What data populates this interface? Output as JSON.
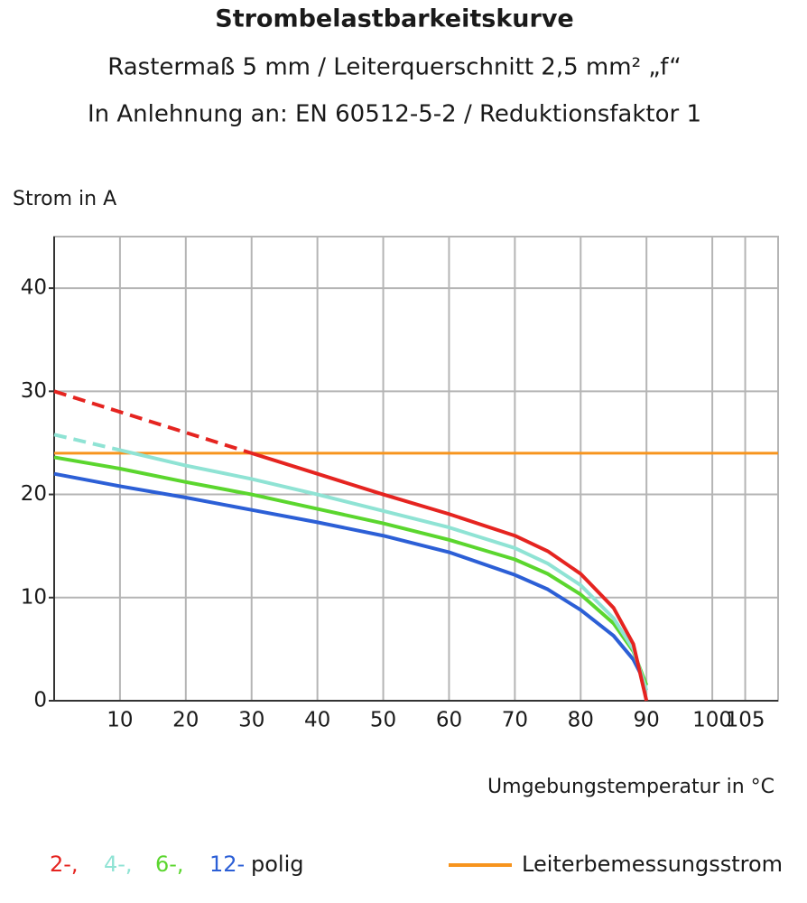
{
  "chart_data": {
    "type": "line",
    "title": "Strombelastbarkeitskurve",
    "subtitle": [
      "Rastermaß 5 mm / Leiterquerschnitt 2,5 mm² „f“",
      "In Anlehnung an: EN 60512-5-2 / Reduktionsfaktor 1"
    ],
    "y_label": "Strom in A",
    "x_label": "Umgebungstemperatur in °C",
    "x": [
      0,
      10,
      20,
      30,
      40,
      50,
      60,
      70,
      75,
      80,
      85,
      88,
      90
    ],
    "series": [
      {
        "name": "2-,",
        "color": "#e52420",
        "values": [
          null,
          null,
          null,
          24,
          22,
          20,
          18.1,
          16,
          14.5,
          12.3,
          9,
          5.5,
          0
        ],
        "dashed_values": [
          30,
          28,
          26,
          24,
          null,
          null,
          null,
          null,
          null,
          null,
          null,
          null,
          null
        ]
      },
      {
        "name": "4-,",
        "color": "#8fe3d4",
        "values": [
          null,
          24.3,
          22.8,
          21.5,
          20,
          18.4,
          16.8,
          14.8,
          13.3,
          11.2,
          8,
          5,
          1
        ],
        "dashed_values": [
          25.8,
          24.3,
          null,
          null,
          null,
          null,
          null,
          null,
          null,
          null,
          null,
          null,
          null
        ]
      },
      {
        "name": "6-,",
        "color": "#5bd62e",
        "values": [
          23.6,
          22.5,
          21.2,
          20,
          18.6,
          17.2,
          15.6,
          13.7,
          12.3,
          10.3,
          7.5,
          4.8,
          1.5
        ]
      },
      {
        "name": "12-",
        "color": "#2c5fd6",
        "values": [
          22,
          20.8,
          19.7,
          18.5,
          17.3,
          16,
          14.4,
          12.2,
          10.8,
          8.8,
          6.3,
          4,
          1.5
        ]
      }
    ],
    "legend_suffix": "polig",
    "reference_line": {
      "name": "Leiterbemessungsstrom",
      "value": 24,
      "color": "#f7941d"
    },
    "xlim": [
      0,
      110
    ],
    "xticks": [
      10,
      20,
      30,
      40,
      50,
      60,
      70,
      80,
      90,
      100,
      105
    ],
    "ylim": [
      0,
      45
    ],
    "yticks": [
      0,
      10,
      20,
      30,
      40
    ],
    "grid": true
  }
}
